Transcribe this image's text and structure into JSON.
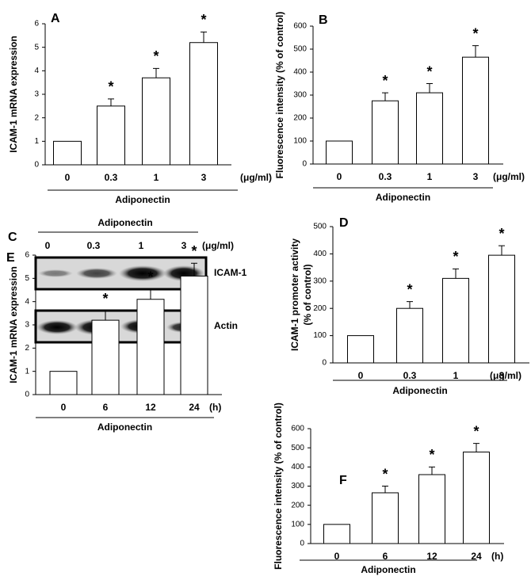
{
  "chart_data": [
    {
      "type": "bar",
      "panel": "A",
      "ylabel": "ICAM-1 mRNA expression",
      "categories": [
        "0",
        "0.3",
        "1",
        "3"
      ],
      "unit": "(μg/ml)",
      "xlabel": "Adiponectin",
      "values": [
        1,
        2.5,
        3.7,
        5.2
      ],
      "errors": [
        null,
        0.3,
        0.4,
        0.45
      ],
      "significance": [
        null,
        "*",
        "*",
        "*"
      ],
      "color": "#ffffff",
      "ylim": [
        0,
        6
      ],
      "yticks": [
        0,
        1,
        2,
        3,
        4,
        5,
        6
      ]
    },
    {
      "type": "bar",
      "panel": "B",
      "ylabel": "Fluorescence intensity (% of control)",
      "categories": [
        "0",
        "0.3",
        "1",
        "3"
      ],
      "unit": "(μg/ml)",
      "xlabel": "Adiponectin",
      "values": [
        100,
        275,
        310,
        465
      ],
      "errors": [
        null,
        35,
        40,
        50
      ],
      "significance": [
        null,
        "*",
        "*",
        "*"
      ],
      "color": "#ffffff",
      "ylim": [
        0,
        600
      ],
      "yticks": [
        0,
        100,
        200,
        300,
        400,
        500,
        600
      ]
    },
    {
      "type": "bar",
      "panel": "D",
      "ylabel": [
        "ICAM-1 promoter activity",
        "(% of control)"
      ],
      "categories": [
        "0",
        "0.3",
        "1",
        "3"
      ],
      "unit": "(μg/ml)",
      "xlabel": "Adiponectin",
      "values": [
        100,
        200,
        310,
        395
      ],
      "errors": [
        null,
        25,
        35,
        35
      ],
      "significance": [
        null,
        "*",
        "*",
        "*"
      ],
      "color": "#ffffff",
      "ylim": [
        0,
        500
      ],
      "yticks": [
        0,
        100,
        200,
        300,
        400,
        500
      ]
    },
    {
      "type": "bar",
      "panel": "E",
      "ylabel": "ICAM-1 mRNA expression",
      "categories": [
        "0",
        "6",
        "12",
        "24"
      ],
      "unit": "(h)",
      "xlabel": "Adiponectin",
      "values": [
        1,
        3.2,
        4.1,
        5.1
      ],
      "errors": [
        null,
        0.4,
        0.45,
        0.55
      ],
      "significance": [
        null,
        "*",
        "*",
        "*"
      ],
      "color": "#ffffff",
      "ylim": [
        0,
        6
      ],
      "yticks": [
        0,
        1,
        2,
        3,
        4,
        5,
        6
      ]
    },
    {
      "type": "bar",
      "panel": "F",
      "ylabel": "Fluorescence intensity (% of control)",
      "categories": [
        "0",
        "6",
        "12",
        "24"
      ],
      "unit": "(h)",
      "xlabel": "Adiponectin",
      "values": [
        100,
        265,
        360,
        478
      ],
      "errors": [
        null,
        35,
        40,
        45
      ],
      "significance": [
        null,
        "*",
        "*",
        "*"
      ],
      "color": "#ffffff",
      "ylim": [
        0,
        600
      ],
      "yticks": [
        0,
        100,
        200,
        300,
        400,
        500,
        600
      ]
    }
  ],
  "blot": {
    "panel": "C",
    "title": "Adiponectin",
    "lanes": [
      "0",
      "0.3",
      "1",
      "3"
    ],
    "unit": "(μg/ml)",
    "rows": [
      "ICAM-1",
      "Actin"
    ]
  }
}
